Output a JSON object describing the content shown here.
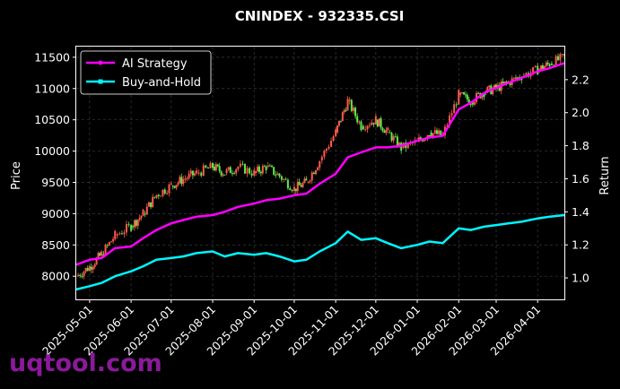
{
  "chart_data": {
    "type": "line",
    "title": "CNINDEX - 932335.CSI",
    "ylabel": "Price",
    "y2label": "Return",
    "ylim": [
      7630,
      11670
    ],
    "y2lim": [
      0.87,
      2.4
    ],
    "y_ticks": [
      8000,
      8500,
      9000,
      9500,
      10000,
      10500,
      11000,
      11500
    ],
    "y2_ticks": [
      1.0,
      1.2,
      1.4,
      1.6,
      1.8,
      2.0,
      2.2
    ],
    "x_range": [
      "2025-04-21",
      "2026-04-21"
    ],
    "x_ticks": [
      "2025-05-01",
      "2025-06-01",
      "2025-07-01",
      "2025-08-01",
      "2025-09-01",
      "2025-10-01",
      "2025-11-01",
      "2025-12-01",
      "2026-01-01",
      "2026-02-01",
      "2026-03-01",
      "2026-04-01"
    ],
    "grid": true,
    "legend_position": "top-left",
    "colors": {
      "background": "#000000",
      "up": "#ff5a4d",
      "down": "#62e64a",
      "ai": "#ff00ff",
      "bh": "#00f5ff",
      "grid": "#3a3a3a"
    },
    "candles_price": {
      "name": "Price",
      "points": [
        [
          "2025-04-21",
          8000
        ],
        [
          "2025-05-01",
          8150
        ],
        [
          "2025-05-10",
          8350
        ],
        [
          "2025-05-20",
          8650
        ],
        [
          "2025-06-01",
          8800
        ],
        [
          "2025-06-10",
          9000
        ],
        [
          "2025-06-20",
          9300
        ],
        [
          "2025-07-01",
          9450
        ],
        [
          "2025-07-10",
          9550
        ],
        [
          "2025-07-20",
          9650
        ],
        [
          "2025-08-01",
          9750
        ],
        [
          "2025-08-10",
          9650
        ],
        [
          "2025-08-20",
          9750
        ],
        [
          "2025-09-01",
          9650
        ],
        [
          "2025-09-10",
          9750
        ],
        [
          "2025-09-20",
          9600
        ],
        [
          "2025-10-01",
          9400
        ],
        [
          "2025-10-10",
          9500
        ],
        [
          "2025-10-20",
          9850
        ],
        [
          "2025-11-01",
          10300
        ],
        [
          "2025-11-10",
          10800
        ],
        [
          "2025-11-20",
          10400
        ],
        [
          "2025-12-01",
          10500
        ],
        [
          "2025-12-10",
          10300
        ],
        [
          "2025-12-20",
          10050
        ],
        [
          "2026-01-01",
          10150
        ],
        [
          "2026-01-10",
          10300
        ],
        [
          "2026-01-20",
          10250
        ],
        [
          "2026-02-01",
          10900
        ],
        [
          "2026-02-10",
          10800
        ],
        [
          "2026-02-20",
          10950
        ],
        [
          "2026-03-01",
          11000
        ],
        [
          "2026-03-10",
          11100
        ],
        [
          "2026-03-20",
          11200
        ],
        [
          "2026-04-01",
          11300
        ],
        [
          "2026-04-10",
          11400
        ],
        [
          "2026-04-21",
          11500
        ]
      ]
    },
    "series": [
      {
        "name": "AI Strategy",
        "axis": "right",
        "points": [
          [
            "2025-04-21",
            1.08
          ],
          [
            "2025-05-01",
            1.11
          ],
          [
            "2025-05-10",
            1.12
          ],
          [
            "2025-05-20",
            1.18
          ],
          [
            "2025-06-01",
            1.19
          ],
          [
            "2025-06-10",
            1.24
          ],
          [
            "2025-06-20",
            1.29
          ],
          [
            "2025-07-01",
            1.33
          ],
          [
            "2025-07-10",
            1.35
          ],
          [
            "2025-07-20",
            1.37
          ],
          [
            "2025-08-01",
            1.38
          ],
          [
            "2025-08-10",
            1.4
          ],
          [
            "2025-08-20",
            1.43
          ],
          [
            "2025-09-01",
            1.45
          ],
          [
            "2025-09-10",
            1.47
          ],
          [
            "2025-09-20",
            1.48
          ],
          [
            "2025-10-01",
            1.5
          ],
          [
            "2025-10-10",
            1.51
          ],
          [
            "2025-10-20",
            1.57
          ],
          [
            "2025-11-01",
            1.63
          ],
          [
            "2025-11-10",
            1.73
          ],
          [
            "2025-11-20",
            1.76
          ],
          [
            "2025-12-01",
            1.79
          ],
          [
            "2025-12-10",
            1.79
          ],
          [
            "2025-12-20",
            1.8
          ],
          [
            "2026-01-01",
            1.83
          ],
          [
            "2026-01-10",
            1.85
          ],
          [
            "2026-01-20",
            1.86
          ],
          [
            "2026-02-01",
            2.02
          ],
          [
            "2026-02-10",
            2.06
          ],
          [
            "2026-02-20",
            2.12
          ],
          [
            "2026-03-01",
            2.15
          ],
          [
            "2026-03-10",
            2.18
          ],
          [
            "2026-03-20",
            2.21
          ],
          [
            "2026-04-01",
            2.25
          ],
          [
            "2026-04-10",
            2.27
          ],
          [
            "2026-04-21",
            2.3
          ]
        ]
      },
      {
        "name": "Buy-and-Hold",
        "axis": "right",
        "points": [
          [
            "2025-04-21",
            0.93
          ],
          [
            "2025-05-01",
            0.95
          ],
          [
            "2025-05-10",
            0.97
          ],
          [
            "2025-05-20",
            1.01
          ],
          [
            "2025-06-01",
            1.04
          ],
          [
            "2025-06-10",
            1.07
          ],
          [
            "2025-06-20",
            1.11
          ],
          [
            "2025-07-01",
            1.12
          ],
          [
            "2025-07-10",
            1.13
          ],
          [
            "2025-07-20",
            1.15
          ],
          [
            "2025-08-01",
            1.16
          ],
          [
            "2025-08-10",
            1.13
          ],
          [
            "2025-08-20",
            1.15
          ],
          [
            "2025-09-01",
            1.14
          ],
          [
            "2025-09-10",
            1.15
          ],
          [
            "2025-09-20",
            1.13
          ],
          [
            "2025-10-01",
            1.1
          ],
          [
            "2025-10-10",
            1.11
          ],
          [
            "2025-10-20",
            1.16
          ],
          [
            "2025-11-01",
            1.21
          ],
          [
            "2025-11-10",
            1.28
          ],
          [
            "2025-11-20",
            1.23
          ],
          [
            "2025-12-01",
            1.24
          ],
          [
            "2025-12-10",
            1.21
          ],
          [
            "2025-12-20",
            1.18
          ],
          [
            "2026-01-01",
            1.2
          ],
          [
            "2026-01-10",
            1.22
          ],
          [
            "2026-01-20",
            1.21
          ],
          [
            "2026-02-01",
            1.3
          ],
          [
            "2026-02-10",
            1.29
          ],
          [
            "2026-02-20",
            1.31
          ],
          [
            "2026-03-01",
            1.32
          ],
          [
            "2026-03-10",
            1.33
          ],
          [
            "2026-03-20",
            1.34
          ],
          [
            "2026-04-01",
            1.36
          ],
          [
            "2026-04-10",
            1.37
          ],
          [
            "2026-04-21",
            1.38
          ]
        ]
      }
    ]
  },
  "watermark": "uqtool.com"
}
